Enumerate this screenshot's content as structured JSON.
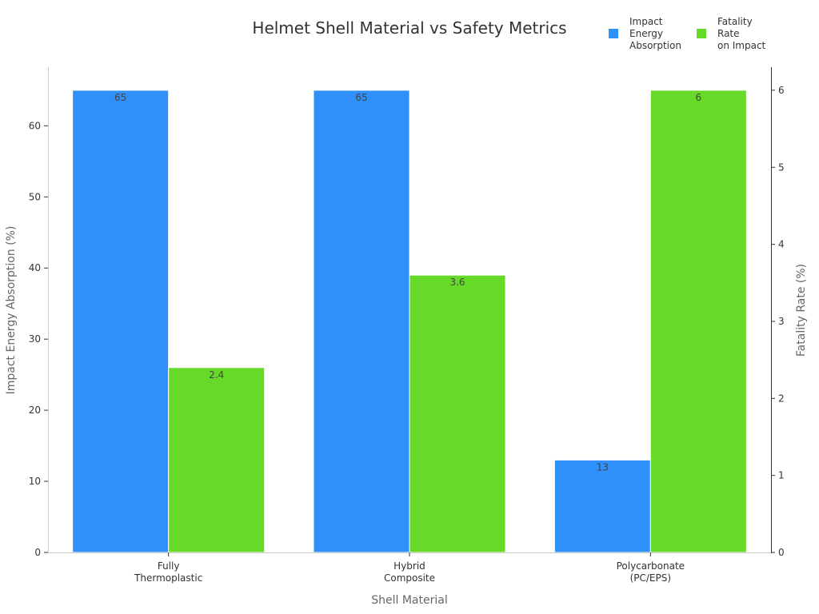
{
  "chart_data": {
    "type": "bar",
    "title": "Helmet Shell Material vs Safety Metrics",
    "xlabel": "Shell Material",
    "ylabel": "Impact Energy Absorption (%)",
    "y2label": "Fatality Rate (%)",
    "categories": [
      [
        "Fully",
        "Thermoplastic"
      ],
      [
        "Hybrid",
        "Composite"
      ],
      [
        "Polycarbonate",
        "(PC/EPS)"
      ]
    ],
    "ylim": [
      0,
      68.25
    ],
    "y2lim": [
      0,
      6.3
    ],
    "yticks": [
      0,
      10,
      20,
      30,
      40,
      50,
      60
    ],
    "y2ticks": [
      0,
      1,
      2,
      3,
      4,
      5,
      6
    ],
    "grid": false,
    "legend_position": "top-right",
    "series": [
      {
        "name": [
          "Impact",
          "Energy",
          "Absorption"
        ],
        "axis": "left",
        "color": "#2e90f8",
        "values": [
          65,
          65,
          13
        ]
      },
      {
        "name": [
          "Fatality",
          "Rate",
          "on Impact"
        ],
        "axis": "right",
        "color": "#66d929",
        "values": [
          2.4,
          3.6,
          6
        ]
      }
    ]
  }
}
